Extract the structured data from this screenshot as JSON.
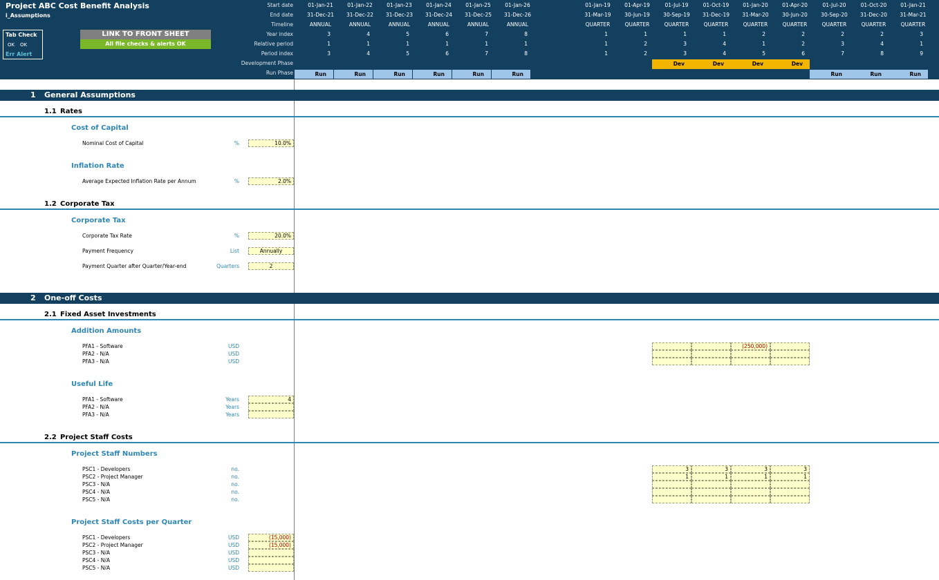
{
  "header": {
    "title": "Project ABC Cost Benefit Analysis",
    "sheet_name": "i_Assumptions",
    "tab_check": {
      "label": "Tab Check",
      "status1": "OK",
      "status2": "OK",
      "alert": "Err Alert"
    },
    "link_button": "LINK TO FRONT SHEET",
    "checks_status": "All file checks & alerts OK",
    "row_labels": {
      "start_date": "Start date",
      "end_date": "End date",
      "timeline": "Timeline",
      "year_index": "Year index",
      "relative_period": "Relative period",
      "period_index": "Period index",
      "development_phase": "Development Phase",
      "run_phase": "Run Phase"
    },
    "annual_columns": [
      {
        "start": "01-Jan-21",
        "end": "31-Dec-21",
        "timeline": "ANNUAL",
        "year_index": "3",
        "relative_period": "1",
        "period_index": "3",
        "run": "Run"
      },
      {
        "start": "01-Jan-22",
        "end": "31-Dec-22",
        "timeline": "ANNUAL",
        "year_index": "4",
        "relative_period": "1",
        "period_index": "4",
        "run": "Run"
      },
      {
        "start": "01-Jan-23",
        "end": "31-Dec-23",
        "timeline": "ANNUAL",
        "year_index": "5",
        "relative_period": "1",
        "period_index": "5",
        "run": "Run"
      },
      {
        "start": "01-Jan-24",
        "end": "31-Dec-24",
        "timeline": "ANNUAL",
        "year_index": "6",
        "relative_period": "1",
        "period_index": "6",
        "run": "Run"
      },
      {
        "start": "01-Jan-25",
        "end": "31-Dec-25",
        "timeline": "ANNUAL",
        "year_index": "7",
        "relative_period": "1",
        "period_index": "7",
        "run": "Run"
      },
      {
        "start": "01-Jan-26",
        "end": "31-Dec-26",
        "timeline": "ANNUAL",
        "year_index": "8",
        "relative_period": "1",
        "period_index": "8",
        "run": "Run"
      }
    ],
    "quarter_columns": [
      {
        "start": "01-Jan-19",
        "end": "31-Mar-19",
        "timeline": "QUARTER",
        "year_index": "1",
        "relative_period": "1",
        "period_index": "1",
        "dev": "",
        "run": ""
      },
      {
        "start": "01-Apr-19",
        "end": "30-Jun-19",
        "timeline": "QUARTER",
        "year_index": "1",
        "relative_period": "2",
        "period_index": "2",
        "dev": "",
        "run": ""
      },
      {
        "start": "01-Jul-19",
        "end": "30-Sep-19",
        "timeline": "QUARTER",
        "year_index": "1",
        "relative_period": "3",
        "period_index": "3",
        "dev": "Dev",
        "run": ""
      },
      {
        "start": "01-Oct-19",
        "end": "31-Dec-19",
        "timeline": "QUARTER",
        "year_index": "1",
        "relative_period": "4",
        "period_index": "4",
        "dev": "Dev",
        "run": ""
      },
      {
        "start": "01-Jan-20",
        "end": "31-Mar-20",
        "timeline": "QUARTER",
        "year_index": "2",
        "relative_period": "1",
        "period_index": "5",
        "dev": "Dev",
        "run": ""
      },
      {
        "start": "01-Apr-20",
        "end": "30-Jun-20",
        "timeline": "QUARTER",
        "year_index": "2",
        "relative_period": "2",
        "period_index": "6",
        "dev": "Dev",
        "run": ""
      },
      {
        "start": "01-Jul-20",
        "end": "30-Sep-20",
        "timeline": "QUARTER",
        "year_index": "2",
        "relative_period": "3",
        "period_index": "7",
        "dev": "",
        "run": "Run"
      },
      {
        "start": "01-Oct-20",
        "end": "31-Dec-20",
        "timeline": "QUARTER",
        "year_index": "2",
        "relative_period": "4",
        "period_index": "8",
        "dev": "",
        "run": "Run"
      },
      {
        "start": "01-Jan-21",
        "end": "31-Mar-21",
        "timeline": "QUARTER",
        "year_index": "3",
        "relative_period": "1",
        "period_index": "9",
        "dev": "",
        "run": "Run"
      }
    ]
  },
  "sections": {
    "s1": {
      "num": "1",
      "title": "General Assumptions"
    },
    "s1_1": {
      "num": "1.1",
      "title": "Rates"
    },
    "s1_2": {
      "num": "1.2",
      "title": "Corporate Tax"
    },
    "s2": {
      "num": "2",
      "title": "One-off Costs"
    },
    "s2_1": {
      "num": "2.1",
      "title": "Fixed Asset Investments"
    },
    "s2_2": {
      "num": "2.2",
      "title": "Project Staff Costs"
    }
  },
  "cost_of_capital": {
    "heading": "Cost of Capital",
    "label": "Nominal Cost of Capital",
    "unit": "%",
    "value": "10.0%"
  },
  "inflation": {
    "heading": "Inflation Rate",
    "label": "Average Expected Inflation Rate per Annum",
    "unit": "%",
    "value": "2.0%"
  },
  "corporate_tax": {
    "heading": "Corporate Tax",
    "rate": {
      "label": "Corporate Tax Rate",
      "unit": "%",
      "value": "20.0%"
    },
    "frequency": {
      "label": "Payment Frequency",
      "unit": "List",
      "value": "Annually"
    },
    "quarter": {
      "label": "Payment Quarter after Quarter/Year-end",
      "unit": "Quarters",
      "value": "2"
    }
  },
  "addition_amounts": {
    "heading": "Addition Amounts",
    "rows": [
      {
        "label": "PFA1 - Software",
        "unit": "USD",
        "cells": [
          "",
          "",
          "(250,000)",
          ""
        ]
      },
      {
        "label": "PFA2 - N/A",
        "unit": "USD",
        "cells": [
          "",
          "",
          "",
          ""
        ]
      },
      {
        "label": "PFA3 - N/A",
        "unit": "USD",
        "cells": [
          "",
          "",
          "",
          ""
        ]
      }
    ]
  },
  "useful_life": {
    "heading": "Useful Life",
    "rows": [
      {
        "label": "PFA1 - Software",
        "unit": "Years",
        "value": "4"
      },
      {
        "label": "PFA2 - N/A",
        "unit": "Years",
        "value": ""
      },
      {
        "label": "PFA3 - N/A",
        "unit": "Years",
        "value": ""
      }
    ]
  },
  "staff_numbers": {
    "heading": "Project Staff Numbers",
    "rows": [
      {
        "label": "PSC1 - Developers",
        "unit": "no.",
        "cells": [
          "3",
          "3",
          "3",
          "3"
        ]
      },
      {
        "label": "PSC2 - Project Manager",
        "unit": "no.",
        "cells": [
          "1",
          "1",
          "1",
          "1"
        ]
      },
      {
        "label": "PSC3 - N/A",
        "unit": "no.",
        "cells": [
          "",
          "",
          "",
          ""
        ]
      },
      {
        "label": "PSC4 - N/A",
        "unit": "no.",
        "cells": [
          "",
          "",
          "",
          ""
        ]
      },
      {
        "label": "PSC5 - N/A",
        "unit": "no.",
        "cells": [
          "",
          "",
          "",
          ""
        ]
      }
    ]
  },
  "staff_costs": {
    "heading": "Project Staff Costs per Quarter",
    "rows": [
      {
        "label": "PSC1 - Developers",
        "unit": "USD",
        "value": "(15,000)"
      },
      {
        "label": "PSC2 - Project Manager",
        "unit": "USD",
        "value": "(15,000)"
      },
      {
        "label": "PSC3 - N/A",
        "unit": "USD",
        "value": ""
      },
      {
        "label": "PSC4 - N/A",
        "unit": "USD",
        "value": ""
      },
      {
        "label": "PSC5 - N/A",
        "unit": "USD",
        "value": ""
      }
    ]
  }
}
